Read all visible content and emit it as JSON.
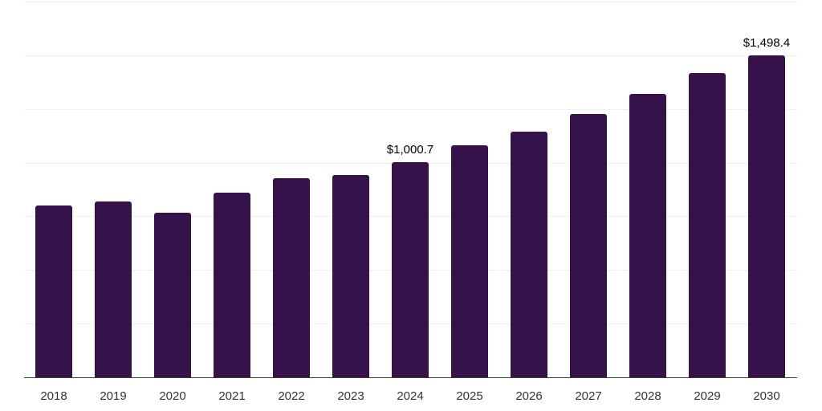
{
  "chart_data": {
    "type": "bar",
    "title": "",
    "xlabel": "",
    "ylabel": "",
    "categories": [
      "2018",
      "2019",
      "2020",
      "2021",
      "2022",
      "2023",
      "2024",
      "2025",
      "2026",
      "2027",
      "2028",
      "2029",
      "2030"
    ],
    "values": [
      802,
      820,
      767,
      861,
      928,
      943,
      1000.7,
      1081,
      1146,
      1226,
      1319,
      1416,
      1498.4
    ],
    "point_labels": [
      "",
      "",
      "",
      "",
      "",
      "",
      "$1,000.7",
      "",
      "",
      "",
      "",
      "",
      "$1,498.4"
    ],
    "ylim": [
      0,
      1750
    ],
    "gridline_values": [
      250,
      500,
      750,
      1000,
      1250,
      1500,
      1750
    ],
    "grid": "horizontal",
    "legend": "none",
    "y_tick_labels_visible": false
  },
  "colors": {
    "bar": "#36124A",
    "gridline": "#f0f0f0",
    "axis_line": "#3d3d3d",
    "value_label": "#000000",
    "tick_label": "#333333",
    "background": "#ffffff"
  }
}
